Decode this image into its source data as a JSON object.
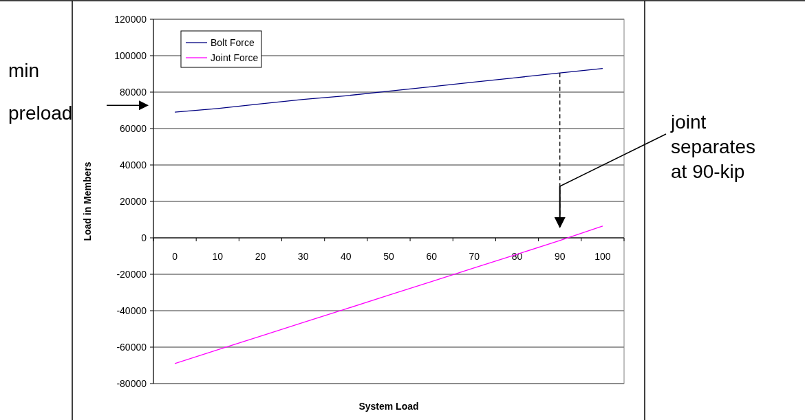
{
  "chart_data": {
    "type": "line",
    "xlabel": "System Load",
    "ylabel": "Load in Members",
    "categories": [
      "0",
      "10",
      "20",
      "30",
      "40",
      "50",
      "60",
      "70",
      "80",
      "90",
      "100"
    ],
    "series": [
      {
        "name": "Bolt Force",
        "color": "#000080",
        "values": [
          69000,
          71000,
          73500,
          76000,
          78000,
          80500,
          83000,
          85500,
          88000,
          90500,
          93000
        ]
      },
      {
        "name": "Joint Force",
        "color": "#ff00ff",
        "values": [
          -69000,
          -61500,
          -54000,
          -46500,
          -39000,
          -31500,
          -24000,
          -16500,
          -9000,
          -1500,
          6500
        ]
      }
    ],
    "ylim": [
      -80000,
      120000
    ],
    "yticks": [
      -80000,
      -60000,
      -40000,
      -20000,
      0,
      20000,
      40000,
      60000,
      80000,
      100000,
      120000
    ],
    "grid": "y",
    "legend": "top left",
    "marker": "none",
    "line_style": "solid",
    "annotations": [
      "min preload",
      "joint separates at 90-kip"
    ]
  }
}
